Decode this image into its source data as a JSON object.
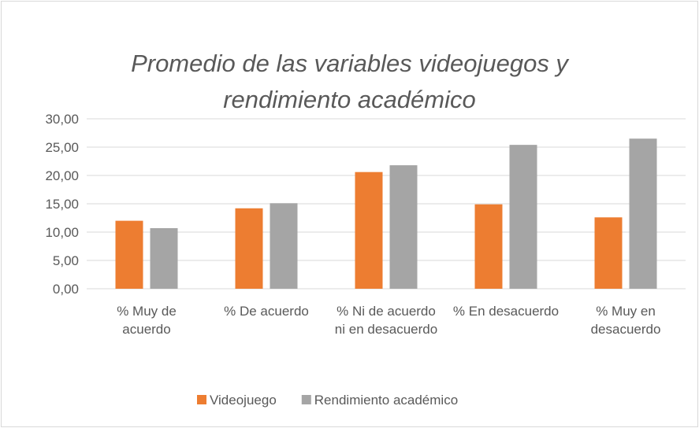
{
  "chart_data": {
    "type": "bar",
    "title": "Promedio de las variables videojuegos y rendimiento académico",
    "categories": [
      "% Muy de acuerdo",
      "% De acuerdo",
      "% Ni de acuerdo ni en desacuerdo",
      "% En desacuerdo",
      "% Muy en desacuerdo"
    ],
    "series": [
      {
        "name": "Videojuego",
        "color": "#ed7d31",
        "values": [
          12.0,
          14.2,
          20.6,
          14.9,
          12.6
        ]
      },
      {
        "name": "Rendimiento académico",
        "color": "#a5a5a5",
        "values": [
          10.7,
          15.1,
          21.8,
          25.4,
          26.5
        ]
      }
    ],
    "ylim": [
      0,
      30
    ],
    "yticks": [
      {
        "value": 0,
        "label": "0,00"
      },
      {
        "value": 5,
        "label": "5,00"
      },
      {
        "value": 10,
        "label": "10,00"
      },
      {
        "value": 15,
        "label": "15,00"
      },
      {
        "value": 20,
        "label": "20,00"
      },
      {
        "value": 25,
        "label": "25,00"
      },
      {
        "value": 30,
        "label": "30,00"
      }
    ],
    "grid": true,
    "legend": "bottom"
  }
}
